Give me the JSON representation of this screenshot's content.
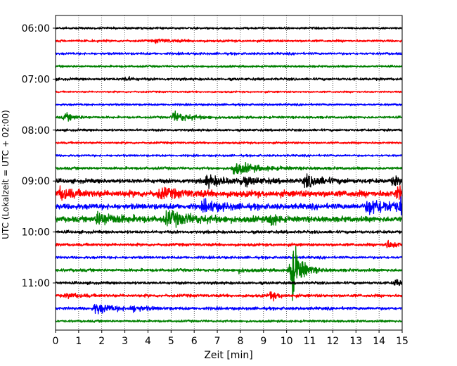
{
  "chart_data": {
    "type": "line",
    "title": "",
    "xlabel": "Zeit  [min]",
    "ylabel": "UTC (Lokalzeit = UTC + 02:00)",
    "xlim": [
      0,
      15
    ],
    "x_ticks": [
      "0",
      "1",
      "2",
      "3",
      "4",
      "5",
      "6",
      "7",
      "8",
      "9",
      "10",
      "11",
      "12",
      "13",
      "14",
      "15"
    ],
    "y_ticks": [
      {
        "label": "06:00",
        "trace": 0
      },
      {
        "label": "07:00",
        "trace": 4
      },
      {
        "label": "08:00",
        "trace": 8
      },
      {
        "label": "09:00",
        "trace": 12
      },
      {
        "label": "10:00",
        "trace": 16
      },
      {
        "label": "11:00",
        "trace": 20
      }
    ],
    "grid": "vertical dotted",
    "trace_interval_min": 15,
    "colors": [
      "#000000",
      "#ff0000",
      "#0000ff",
      "#008000"
    ],
    "traces": [
      {
        "start": "06:00",
        "noise": 1.0,
        "events": []
      },
      {
        "start": "06:15",
        "noise": 1.1,
        "events": [
          {
            "t": 4.3,
            "amp": 1.5,
            "width": 0.8
          }
        ]
      },
      {
        "start": "06:30",
        "noise": 1.1,
        "events": []
      },
      {
        "start": "06:45",
        "noise": 1.0,
        "events": []
      },
      {
        "start": "07:00",
        "noise": 1.2,
        "events": [
          {
            "t": 3.0,
            "amp": 2.0,
            "width": 0.3
          }
        ]
      },
      {
        "start": "07:15",
        "noise": 0.8,
        "events": []
      },
      {
        "start": "07:30",
        "noise": 1.0,
        "events": []
      },
      {
        "start": "07:45",
        "noise": 1.1,
        "events": [
          {
            "t": 0.4,
            "amp": 3.5,
            "width": 0.4
          },
          {
            "t": 5.1,
            "amp": 5.0,
            "width": 0.7
          }
        ]
      },
      {
        "start": "08:00",
        "noise": 1.1,
        "events": []
      },
      {
        "start": "08:15",
        "noise": 1.0,
        "events": []
      },
      {
        "start": "08:30",
        "noise": 1.0,
        "events": []
      },
      {
        "start": "08:45",
        "noise": 1.3,
        "events": [
          {
            "t": 7.7,
            "amp": 6.0,
            "width": 0.9
          }
        ]
      },
      {
        "start": "09:00",
        "noise": 2.0,
        "events": [
          {
            "t": 6.5,
            "amp": 5.0,
            "width": 0.8
          },
          {
            "t": 8.0,
            "amp": 3.0,
            "width": 0.8
          },
          {
            "t": 10.8,
            "amp": 5.5,
            "width": 0.7
          },
          {
            "t": 14.6,
            "amp": 3.5,
            "width": 0.5
          }
        ]
      },
      {
        "start": "09:15",
        "noise": 3.0,
        "events": [
          {
            "t": 0.2,
            "amp": 5.0,
            "width": 0.5
          },
          {
            "t": 4.5,
            "amp": 4.0,
            "width": 0.8
          },
          {
            "t": 14.8,
            "amp": 6.0,
            "width": 0.4
          }
        ]
      },
      {
        "start": "09:30",
        "noise": 2.6,
        "events": [
          {
            "t": 6.4,
            "amp": 5.0,
            "width": 0.7
          },
          {
            "t": 13.5,
            "amp": 7.0,
            "width": 1.2
          },
          {
            "t": 14.9,
            "amp": 6.0,
            "width": 0.3
          }
        ]
      },
      {
        "start": "09:45",
        "noise": 2.6,
        "events": [
          {
            "t": 1.8,
            "amp": 6.0,
            "width": 0.9
          },
          {
            "t": 4.8,
            "amp": 6.0,
            "width": 1.2
          },
          {
            "t": 9.3,
            "amp": 8.0,
            "width": 0.2
          }
        ]
      },
      {
        "start": "10:00",
        "noise": 1.4,
        "events": []
      },
      {
        "start": "10:15",
        "noise": 1.4,
        "events": [
          {
            "t": 14.3,
            "amp": 3.5,
            "width": 0.5
          }
        ]
      },
      {
        "start": "10:30",
        "noise": 1.2,
        "events": []
      },
      {
        "start": "10:45",
        "noise": 1.4,
        "events": [
          {
            "t": 10.2,
            "amp": 32.0,
            "width": 0.35
          },
          {
            "t": 7.9,
            "amp": 1.5,
            "width": 0.5
          }
        ]
      },
      {
        "start": "11:00",
        "noise": 1.3,
        "events": [
          {
            "t": 14.7,
            "amp": 3.0,
            "width": 0.4
          }
        ]
      },
      {
        "start": "11:15",
        "noise": 1.4,
        "events": [
          {
            "t": 9.3,
            "amp": 4.0,
            "width": 0.3
          },
          {
            "t": 0.5,
            "amp": 2.0,
            "width": 0.5
          }
        ]
      },
      {
        "start": "11:30",
        "noise": 1.4,
        "events": [
          {
            "t": 1.7,
            "amp": 5.0,
            "width": 0.7
          },
          {
            "t": 3.3,
            "amp": 2.5,
            "width": 0.5
          }
        ]
      },
      {
        "start": "11:45",
        "noise": 1.1,
        "events": []
      }
    ]
  }
}
